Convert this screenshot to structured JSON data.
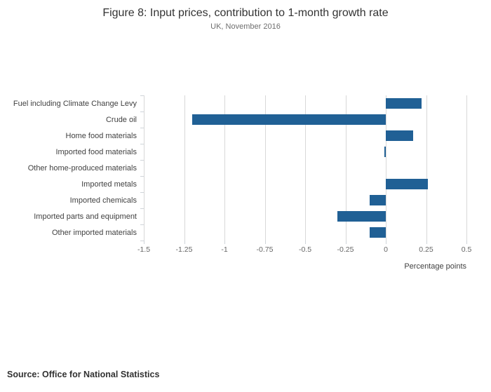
{
  "page": {
    "title": "Figure 8: Input prices, contribution to 1-month growth rate",
    "subtitle": "UK, November 2016",
    "source": "Source: Office for National Statistics"
  },
  "chart_data": {
    "type": "bar",
    "orientation": "horizontal",
    "title": "Figure 8: Input prices, contribution to 1-month growth rate",
    "subtitle": "UK, November 2016",
    "categories": [
      "Fuel including Climate Change Levy",
      "Crude oil",
      "Home food materials",
      "Imported food materials",
      "Other home-produced materials",
      "Imported metals",
      "Imported chemicals",
      "Imported parts and equipment",
      "Other imported materials"
    ],
    "values": [
      0.22,
      -1.2,
      0.17,
      -0.01,
      0,
      0.26,
      -0.1,
      -0.3,
      -0.1
    ],
    "xlabel": "Percentage points",
    "ylabel": "",
    "xlim": [
      -1.5,
      0.5
    ],
    "xticks": [
      -1.5,
      -1.25,
      -1,
      -0.75,
      -0.5,
      -0.25,
      0,
      0.25,
      0.5
    ],
    "xtick_labels": [
      "-1.5",
      "-1.25",
      "-1",
      "-0.75",
      "-0.5",
      "-0.25",
      "0",
      "0.25",
      "0.5"
    ],
    "bar_color": "#206095",
    "grid": true,
    "legend": "none"
  }
}
